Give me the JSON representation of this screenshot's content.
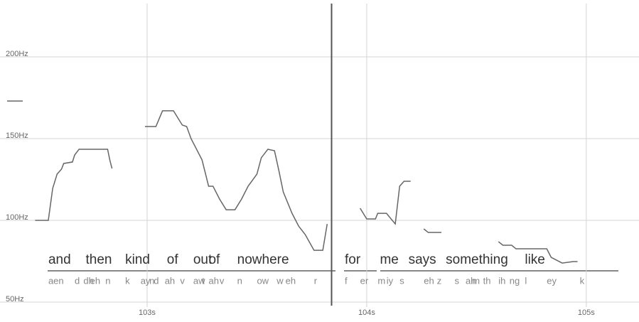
{
  "chart_data": {
    "type": "line",
    "xlim": [
      102.33,
      105.24
    ],
    "ylim": [
      43.5,
      232.6
    ],
    "xticks": [
      {
        "value": 103,
        "label": "103s"
      },
      {
        "value": 104,
        "label": "104s"
      },
      {
        "value": 105,
        "label": "105s"
      }
    ],
    "yticks": [
      {
        "value": 50,
        "label": "50Hz"
      },
      {
        "value": 100,
        "label": "100Hz"
      },
      {
        "value": 150,
        "label": "150Hz"
      },
      {
        "value": 200,
        "label": "200Hz"
      }
    ],
    "grid": true,
    "cursor_x": 103.84,
    "marker_hz": 173,
    "series": [
      {
        "color": "#666666",
        "x": [
          102.49,
          102.55,
          102.57,
          102.59,
          102.61,
          102.62,
          102.66,
          102.67,
          102.69,
          102.82,
          102.83,
          102.84,
          null,
          102.99,
          103.04,
          103.07,
          103.12,
          103.16,
          103.18,
          103.2,
          103.25,
          103.28,
          103.3,
          103.33,
          103.36,
          103.4,
          103.43,
          103.46,
          103.5,
          103.52,
          103.55,
          103.58,
          103.6,
          103.62,
          103.66,
          103.69,
          103.72,
          103.76,
          103.8,
          103.82,
          null,
          103.97,
          104.0,
          104.04,
          104.05,
          104.09,
          104.13,
          104.15,
          104.17,
          104.2,
          null,
          104.26,
          104.28,
          104.34,
          null,
          104.6,
          104.62,
          104.66,
          104.68,
          104.82,
          104.84,
          104.89,
          104.94,
          104.96
        ],
        "values": [
          100,
          100,
          119.6,
          128.3,
          131.3,
          134.8,
          135.7,
          140,
          143.5,
          143.5,
          137,
          131.7,
          null,
          157.4,
          157.4,
          167,
          167,
          158.3,
          157.4,
          150,
          137,
          120.9,
          120.9,
          113,
          106.5,
          106.5,
          113,
          120.9,
          128.3,
          138.3,
          143.5,
          142.6,
          130.4,
          117.4,
          104.3,
          96.5,
          91.3,
          81.7,
          81.7,
          97.8,
          null,
          107.4,
          100.9,
          100.9,
          104.3,
          104.3,
          97.8,
          120.9,
          123.9,
          123.9,
          null,
          94.8,
          92.6,
          92.6,
          null,
          87,
          84.8,
          84.8,
          82.6,
          82.6,
          77.4,
          73.9,
          74.8,
          74.8
        ]
      }
    ],
    "words": [
      {
        "text": "and",
        "start": 102.55
      },
      {
        "text": "then",
        "start": 102.72
      },
      {
        "text": "kind",
        "start": 102.9
      },
      {
        "text": "of",
        "start": 103.09
      },
      {
        "text": "out",
        "start": 103.21
      },
      {
        "text": "of",
        "start": 103.28
      },
      {
        "text": "nowhere",
        "start": 103.41
      },
      {
        "text": "for",
        "start": 103.9
      },
      {
        "text": "me",
        "start": 104.06
      },
      {
        "text": "says",
        "start": 104.19
      },
      {
        "text": "something",
        "start": 104.36
      },
      {
        "text": "like",
        "start": 104.72
      }
    ],
    "phonemes": [
      {
        "text": "aen",
        "start": 102.55
      },
      {
        "text": "d",
        "start": 102.67
      },
      {
        "text": "dh",
        "start": 102.71
      },
      {
        "text": "eh",
        "start": 102.74
      },
      {
        "text": "n",
        "start": 102.81
      },
      {
        "text": "k",
        "start": 102.9
      },
      {
        "text": "ay",
        "start": 102.97
      },
      {
        "text": "n",
        "start": 103.01
      },
      {
        "text": "d",
        "start": 103.03
      },
      {
        "text": "ah",
        "start": 103.08
      },
      {
        "text": "v",
        "start": 103.15
      },
      {
        "text": "aw",
        "start": 103.21
      },
      {
        "text": "t",
        "start": 103.25
      },
      {
        "text": "ah",
        "start": 103.28
      },
      {
        "text": "v",
        "start": 103.33
      },
      {
        "text": "n",
        "start": 103.41
      },
      {
        "text": "ow",
        "start": 103.5
      },
      {
        "text": "w",
        "start": 103.59
      },
      {
        "text": "eh",
        "start": 103.63
      },
      {
        "text": "r",
        "start": 103.76
      },
      {
        "text": "f",
        "start": 103.9
      },
      {
        "text": "er",
        "start": 103.97
      },
      {
        "text": "m",
        "start": 104.05
      },
      {
        "text": "iy",
        "start": 104.09
      },
      {
        "text": "s",
        "start": 104.15
      },
      {
        "text": "eh",
        "start": 104.26
      },
      {
        "text": "z",
        "start": 104.32
      },
      {
        "text": "s",
        "start": 104.4
      },
      {
        "text": "ah",
        "start": 104.45
      },
      {
        "text": "m",
        "start": 104.48
      },
      {
        "text": "th",
        "start": 104.53
      },
      {
        "text": "ih",
        "start": 104.6
      },
      {
        "text": "ng",
        "start": 104.65
      },
      {
        "text": "l",
        "start": 104.72
      },
      {
        "text": "ey",
        "start": 104.82
      },
      {
        "text": "k",
        "start": 104.97
      }
    ]
  }
}
